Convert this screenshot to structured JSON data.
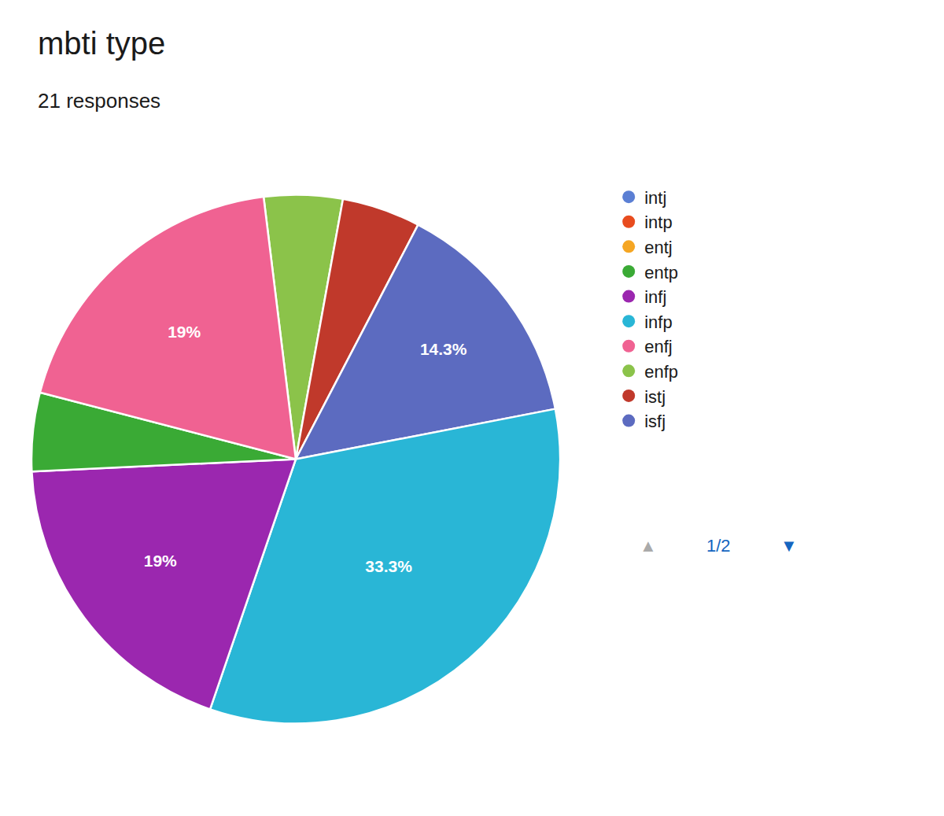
{
  "chart_data": {
    "type": "pie",
    "title": "mbti type",
    "subtitle": "21 responses",
    "categories": [
      "enfp",
      "istj",
      "isfj",
      "infp",
      "infj",
      "entp",
      "enfj"
    ],
    "values": [
      4.8,
      4.8,
      14.3,
      33.3,
      19,
      4.8,
      19
    ],
    "value_labels": [
      null,
      null,
      "14.3%",
      "33.3%",
      "19%",
      null,
      "19%"
    ],
    "colors": [
      "#8bc34a",
      "#c0392b",
      "#5c6bc0",
      "#29b6d6",
      "#9b27af",
      "#3aaa35",
      "#f06292"
    ],
    "data_labels": true,
    "legend": "right",
    "series": [
      {
        "name": "intj",
        "color": "#5b7fd4"
      },
      {
        "name": "intp",
        "color": "#e84c1e"
      },
      {
        "name": "entj",
        "color": "#f5a623"
      },
      {
        "name": "entp",
        "color": "#3aaa35"
      },
      {
        "name": "infj",
        "color": "#9b27af"
      },
      {
        "name": "infp",
        "color": "#29b6d6"
      },
      {
        "name": "enfj",
        "color": "#f06292"
      },
      {
        "name": "enfp",
        "color": "#8bc34a"
      },
      {
        "name": "istj",
        "color": "#c0392b"
      },
      {
        "name": "isfj",
        "color": "#5c6bc0"
      }
    ],
    "annotations": [
      {
        "text": "▲",
        "color": "#aaaaaa"
      },
      {
        "text": "1/2",
        "color": "#1565C0"
      },
      {
        "text": "▼",
        "color": "#1565C0"
      }
    ]
  }
}
